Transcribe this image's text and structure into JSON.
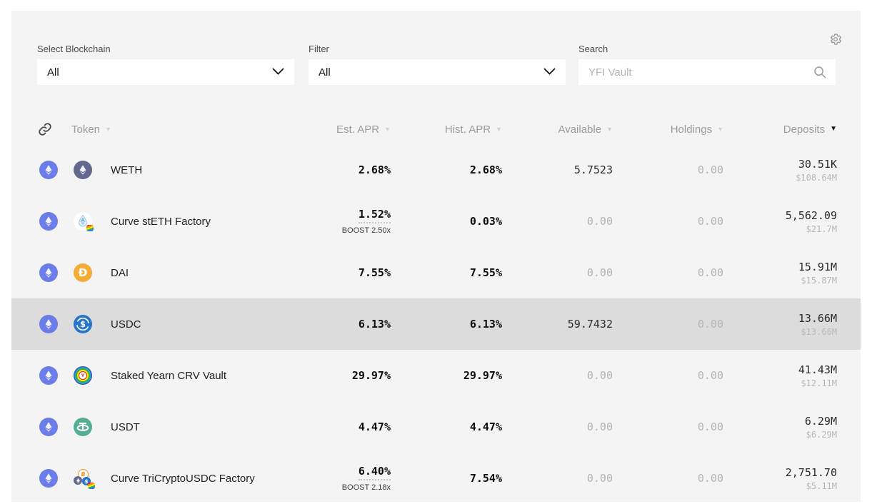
{
  "filters": {
    "blockchain": {
      "label": "Select Blockchain",
      "value": "All"
    },
    "filter": {
      "label": "Filter",
      "value": "All"
    },
    "search": {
      "label": "Search",
      "placeholder": "YFI Vault"
    }
  },
  "header": {
    "columns": [
      {
        "label": "Token",
        "sort": "inactive"
      },
      {
        "label": "Est. APR",
        "sort": "inactive"
      },
      {
        "label": "Hist. APR",
        "sort": "inactive"
      },
      {
        "label": "Available",
        "sort": "inactive"
      },
      {
        "label": "Holdings",
        "sort": "inactive"
      },
      {
        "label": "Deposits",
        "sort": "desc"
      }
    ]
  },
  "rows": [
    {
      "token": "WETH",
      "icon": "weth",
      "est_apr": "2.68%",
      "boost": null,
      "hist_apr": "2.68%",
      "available": "5.7523",
      "holdings": "0.00",
      "deposits": "30.51K",
      "deposits_usd": "$108.64M",
      "highlighted": false
    },
    {
      "token": "Curve stETH Factory",
      "icon": "steth",
      "est_apr": "1.52%",
      "boost": "BOOST 2.50x",
      "hist_apr": "0.03%",
      "available": "0.00",
      "holdings": "0.00",
      "deposits": "5,562.09",
      "deposits_usd": "$21.7M",
      "highlighted": false
    },
    {
      "token": "DAI",
      "icon": "dai",
      "est_apr": "7.55%",
      "boost": null,
      "hist_apr": "7.55%",
      "available": "0.00",
      "holdings": "0.00",
      "deposits": "15.91M",
      "deposits_usd": "$15.87M",
      "highlighted": false
    },
    {
      "token": "USDC",
      "icon": "usdc",
      "est_apr": "6.13%",
      "boost": null,
      "hist_apr": "6.13%",
      "available": "59.7432",
      "holdings": "0.00",
      "deposits": "13.66M",
      "deposits_usd": "$13.66M",
      "highlighted": true
    },
    {
      "token": "Staked Yearn CRV Vault",
      "icon": "stycrv",
      "est_apr": "29.97%",
      "boost": null,
      "hist_apr": "29.97%",
      "available": "0.00",
      "holdings": "0.00",
      "deposits": "41.43M",
      "deposits_usd": "$12.11M",
      "highlighted": false
    },
    {
      "token": "USDT",
      "icon": "usdt",
      "est_apr": "4.47%",
      "boost": null,
      "hist_apr": "4.47%",
      "available": "0.00",
      "holdings": "0.00",
      "deposits": "6.29M",
      "deposits_usd": "$6.29M",
      "highlighted": false
    },
    {
      "token": "Curve TriCryptoUSDC Factory",
      "icon": "tricrypto",
      "est_apr": "6.40%",
      "boost": "BOOST 2.18x",
      "hist_apr": "7.54%",
      "available": "0.00",
      "holdings": "0.00",
      "deposits": "2,751.70",
      "deposits_usd": "$5.11M",
      "highlighted": false
    }
  ],
  "colors": {
    "eth_badge": "#6b7de8",
    "weth": "#62688F",
    "dai": "#F5AC37",
    "usdc": "#2775CA",
    "usdt": "#53AE94",
    "btc": "#F7931A",
    "highlight_row": "#dcdcdc",
    "panel_bg": "#f4f4f4"
  }
}
